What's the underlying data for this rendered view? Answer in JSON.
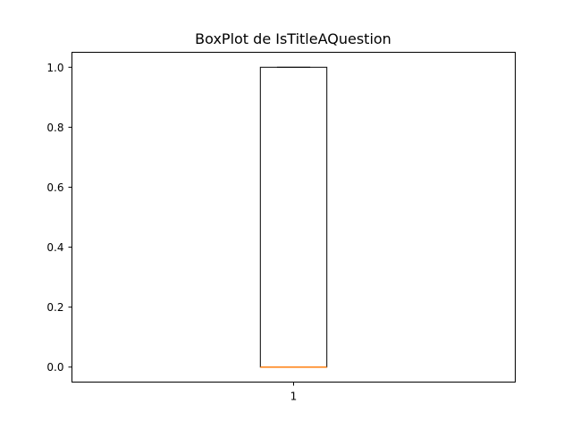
{
  "chart_data": {
    "type": "box",
    "title": "BoxPlot de IsTitleAQuestion",
    "xlabel": "",
    "ylabel": "",
    "categories": [
      "1"
    ],
    "boxes": [
      {
        "category": "1",
        "whisker_low": 0.0,
        "q1": 0.0,
        "median": 0.0,
        "q3": 1.0,
        "whisker_high": 1.0
      }
    ],
    "ylim": [
      -0.05,
      1.05
    ],
    "yticks": [
      "0.0",
      "0.2",
      "0.4",
      "0.6",
      "0.8",
      "1.0"
    ],
    "grid": false,
    "colors": {
      "box": "#000000",
      "median": "#ff7f0e"
    }
  }
}
